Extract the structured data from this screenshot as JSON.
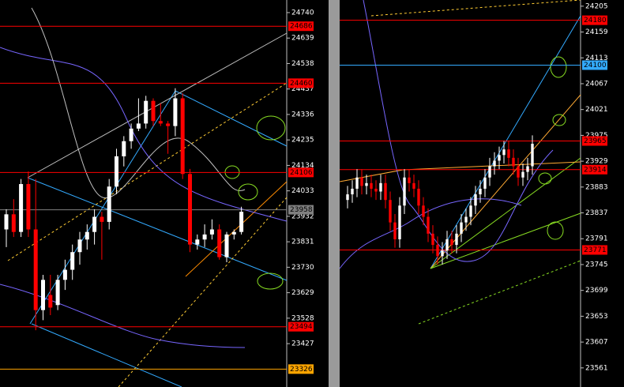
{
  "chart_data": [
    {
      "type": "candlestick",
      "grid": false,
      "up_color": "#ffffff",
      "down_color": "#ff0000",
      "ylim": [
        23255,
        24790
      ],
      "yticks": [
        24740,
        24639,
        24538,
        24437,
        24336,
        24235,
        24134,
        24033,
        23932,
        23831,
        23730,
        23629,
        23528,
        23427
      ],
      "levels": [
        {
          "value": 24686,
          "color": "#ff0000"
        },
        {
          "value": 24460,
          "color": "#ff0000"
        },
        {
          "value": 24106,
          "color": "#ff0000"
        },
        {
          "value": 23958,
          "color": "#808080"
        },
        {
          "value": 23494,
          "color": "#ff0000"
        },
        {
          "value": 23326,
          "color": "#ffa500"
        }
      ],
      "open": [
        23880,
        23940,
        23870,
        24060,
        23880,
        23560,
        23620,
        23580,
        23680,
        23720,
        23790,
        23840,
        23870,
        23930,
        23910,
        24050,
        24170,
        24230,
        24280,
        24300,
        24390,
        24310,
        24300,
        24290,
        24400,
        24100,
        23820,
        23840,
        23860,
        23880,
        23770,
        23860,
        23870
      ],
      "high": [
        23960,
        24000,
        24080,
        24110,
        24080,
        23700,
        23700,
        23700,
        23760,
        23820,
        23870,
        23900,
        23960,
        23950,
        24080,
        24200,
        24250,
        24300,
        24400,
        24410,
        24400,
        24380,
        24310,
        24440,
        24420,
        24120,
        23860,
        23900,
        23920,
        23900,
        23870,
        23880,
        23970
      ],
      "low": [
        23810,
        23850,
        23850,
        23850,
        23480,
        23520,
        23540,
        23560,
        23640,
        23680,
        23740,
        23800,
        23820,
        23760,
        23880,
        24020,
        24130,
        24200,
        24270,
        24280,
        24290,
        24290,
        24180,
        24250,
        24080,
        23790,
        23800,
        23810,
        23840,
        23760,
        23750,
        23840,
        23860
      ],
      "close": [
        23940,
        23870,
        24060,
        23880,
        23560,
        23680,
        23570,
        23680,
        23720,
        23790,
        23840,
        23870,
        23930,
        23910,
        24050,
        24170,
        24230,
        24280,
        24300,
        24390,
        24310,
        24300,
        24290,
        24400,
        24100,
        23820,
        23840,
        23860,
        23880,
        23770,
        23860,
        23870,
        23950
      ]
    },
    {
      "type": "candlestick",
      "grid": false,
      "up_color": "#ffffff",
      "down_color": "#ff0000",
      "ylim": [
        23527,
        24216
      ],
      "yticks": [
        24205,
        24159,
        24113,
        24067,
        24021,
        23975,
        23929,
        23883,
        23837,
        23791,
        23745,
        23699,
        23653,
        23607,
        23561
      ],
      "levels": [
        {
          "value": 24180,
          "color": "#ff0000"
        },
        {
          "value": 24100,
          "color": "#33aaff"
        },
        {
          "value": 23965,
          "color": "#ff0000"
        },
        {
          "value": 23914,
          "color": "#ff0000"
        },
        {
          "value": 23771,
          "color": "#ff0000"
        }
      ],
      "open": [
        23860,
        23870,
        23880,
        23900,
        23885,
        23890,
        23880,
        23875,
        23890,
        23860,
        23820,
        23790,
        23850,
        23900,
        23890,
        23880,
        23850,
        23830,
        23800,
        23780,
        23760,
        23770,
        23790,
        23780,
        23800,
        23820,
        23830,
        23850,
        23870,
        23880,
        23900,
        23920,
        23930,
        23940,
        23950,
        23935,
        23920,
        23900,
        23910,
        23920
      ],
      "high": [
        23885,
        23895,
        23915,
        23915,
        23905,
        23905,
        23895,
        23905,
        23905,
        23875,
        23835,
        23865,
        23915,
        23915,
        23905,
        23895,
        23865,
        23845,
        23815,
        23795,
        23785,
        23805,
        23805,
        23815,
        23835,
        23845,
        23865,
        23885,
        23895,
        23915,
        23935,
        23945,
        23955,
        23965,
        23965,
        23950,
        23935,
        23925,
        23935,
        23975
      ],
      "low": [
        23845,
        23855,
        23865,
        23870,
        23870,
        23865,
        23860,
        23860,
        23845,
        23805,
        23775,
        23775,
        23835,
        23875,
        23865,
        23835,
        23815,
        23785,
        23765,
        23745,
        23745,
        23755,
        23765,
        23765,
        23785,
        23805,
        23815,
        23835,
        23855,
        23865,
        23885,
        23905,
        23915,
        23925,
        23920,
        23905,
        23885,
        23885,
        23895,
        23905
      ],
      "close": [
        23870,
        23880,
        23900,
        23885,
        23890,
        23880,
        23875,
        23890,
        23860,
        23820,
        23790,
        23850,
        23900,
        23890,
        23880,
        23850,
        23830,
        23800,
        23780,
        23760,
        23770,
        23790,
        23780,
        23800,
        23820,
        23830,
        23850,
        23870,
        23880,
        23900,
        23920,
        23930,
        23940,
        23950,
        23935,
        23920,
        23900,
        23910,
        23920,
        23960
      ]
    }
  ]
}
